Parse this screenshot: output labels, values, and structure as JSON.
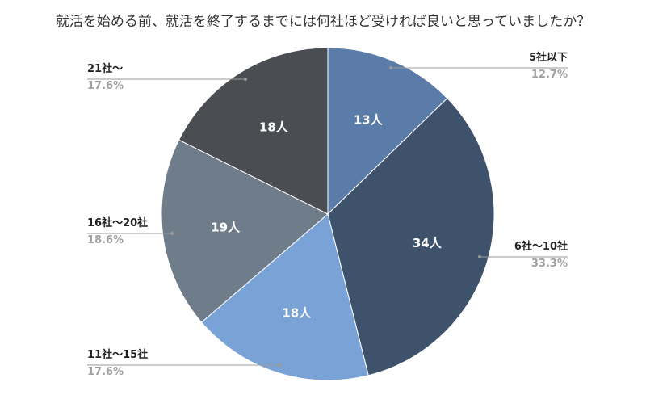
{
  "chart_data": {
    "type": "pie",
    "title": "就活を始める前、就活を終了するまでには何社ほど受ければ良いと思っていましたか？",
    "slices": [
      {
        "label": "5社以下",
        "count_label": "13人",
        "percent_label": "12.7%",
        "value": 13,
        "color": "#5b7ba8"
      },
      {
        "label": "6社〜10社",
        "count_label": "34人",
        "percent_label": "33.3%",
        "value": 34,
        "color": "#3e526b"
      },
      {
        "label": "11社〜15社",
        "count_label": "18人",
        "percent_label": "17.6%",
        "value": 18,
        "color": "#79a3d6"
      },
      {
        "label": "16社〜20社",
        "count_label": "19人",
        "percent_label": "18.6%",
        "value": 19,
        "color": "#6f7c89"
      },
      {
        "label": "21社〜",
        "count_label": "18人",
        "percent_label": "17.6%",
        "value": 18,
        "color": "#4a4d52"
      }
    ]
  }
}
